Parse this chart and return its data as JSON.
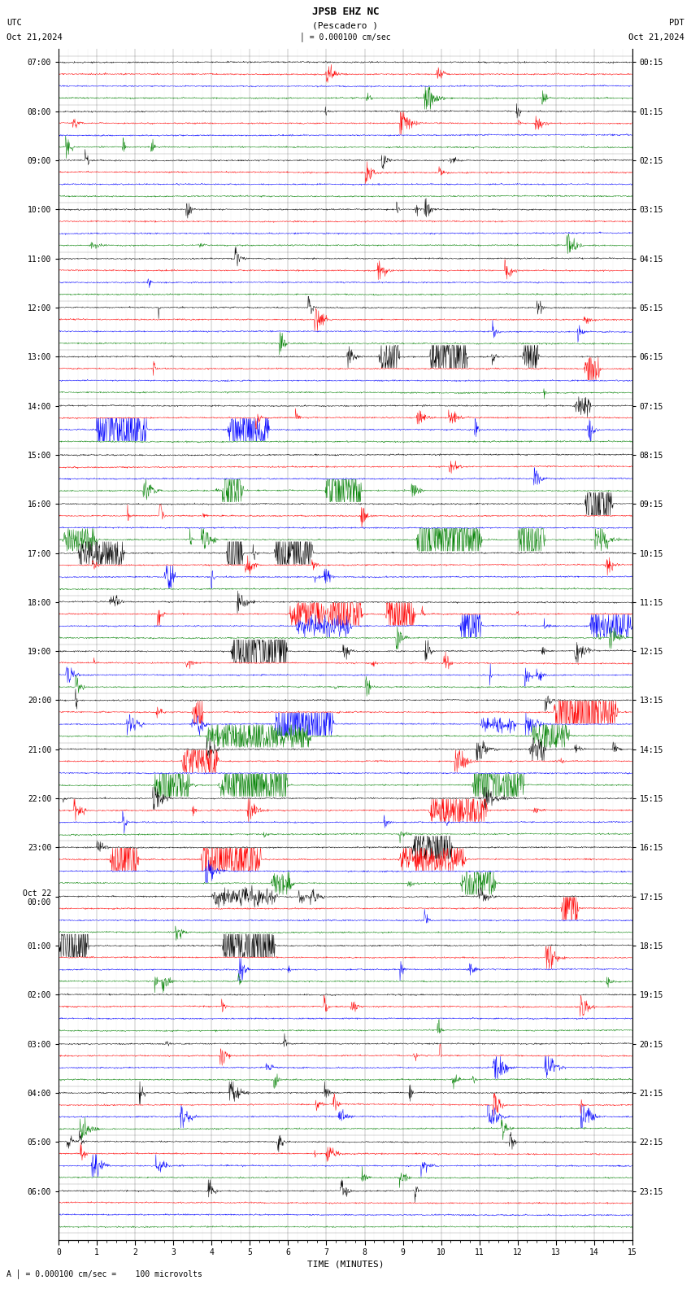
{
  "title_line1": "JPSB EHZ NC",
  "title_line2": "(Pescadero )",
  "scale_text": "= 0.000100 cm/sec",
  "left_label": "UTC",
  "left_date": "Oct 21,2024",
  "right_label": "PDT",
  "right_date": "Oct 21,2024",
  "xlabel": "TIME (MINUTES)",
  "bottom_label": "= 0.000100 cm/sec =    100 microvolts",
  "x_ticks": [
    0,
    1,
    2,
    3,
    4,
    5,
    6,
    7,
    8,
    9,
    10,
    11,
    12,
    13,
    14,
    15
  ],
  "utc_labels": [
    "07:00",
    "08:00",
    "09:00",
    "10:00",
    "11:00",
    "12:00",
    "13:00",
    "14:00",
    "15:00",
    "16:00",
    "17:00",
    "18:00",
    "19:00",
    "20:00",
    "21:00",
    "22:00",
    "23:00",
    "Oct 22\n00:00",
    "01:00",
    "02:00",
    "03:00",
    "04:00",
    "05:00",
    "06:00"
  ],
  "pdt_labels": [
    "00:15",
    "01:15",
    "02:15",
    "03:15",
    "04:15",
    "05:15",
    "06:15",
    "07:15",
    "08:15",
    "09:15",
    "10:15",
    "11:15",
    "12:15",
    "13:15",
    "14:15",
    "15:15",
    "16:15",
    "17:15",
    "18:15",
    "19:15",
    "20:15",
    "21:15",
    "22:15",
    "23:15"
  ],
  "trace_colors": [
    "black",
    "red",
    "blue",
    "green"
  ],
  "n_hours": 24,
  "traces_per_hour": 4,
  "n_points": 1500,
  "fig_width": 8.5,
  "fig_height": 15.84,
  "bg_color": "white",
  "trace_linewidth": 0.35,
  "noise_base": 0.025,
  "xmin": 0,
  "xmax": 15
}
